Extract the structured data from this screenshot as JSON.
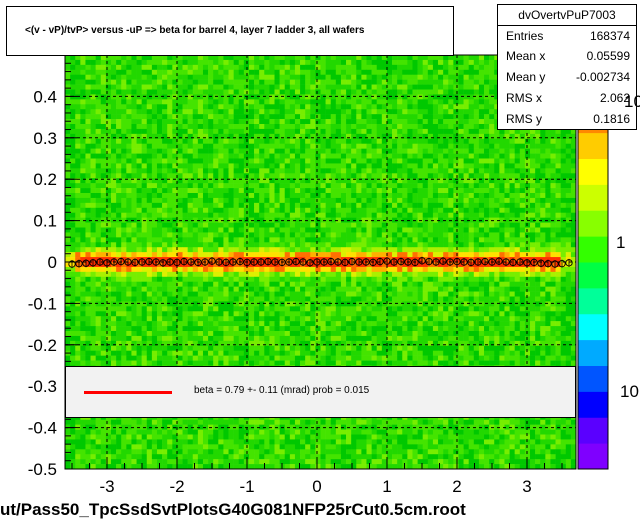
{
  "title": "<(v - vP)/tvP> versus  -uP => beta for barrel 4, layer 7 ladder 3, all wafers",
  "footer": "ut/Pass50_TpcSsdSvtPlotsG40G081NFP25rCut0.5cm.root",
  "stats": {
    "name": "dvOvertvPuP7003",
    "rows": [
      {
        "key": "Entries",
        "value": "168374"
      },
      {
        "key": "Mean x",
        "value": "0.05599"
      },
      {
        "key": "Mean y",
        "value": "-0.002734"
      },
      {
        "key": "RMS x",
        "value": "2.062"
      },
      {
        "key": "RMS y",
        "value": "0.1816"
      }
    ]
  },
  "legend": {
    "text": "beta =    0.79 +-  0.11 (mrad) prob = 0.015",
    "line_color": "#ff0000"
  },
  "colorbar": {
    "tick_labels": [
      "10",
      "1",
      "10"
    ],
    "colors": [
      "#7f00ff",
      "#5a00ff",
      "#0000ff",
      "#0055ff",
      "#00aaff",
      "#00ffff",
      "#00ff99",
      "#00ff44",
      "#33ff00",
      "#88ff00",
      "#ccff00",
      "#ffff00",
      "#ffcc00",
      "#ff8800",
      "#ff4400",
      "#ff0000"
    ]
  },
  "chart_data": {
    "type": "heatmap",
    "title": "<(v - vP)/tvP> versus  -uP => beta for barrel 4, layer 7 ladder 3, all wafers",
    "xlabel": "",
    "ylabel": "",
    "xlim": [
      -3.6,
      3.7
    ],
    "ylim": [
      -0.5,
      0.5
    ],
    "x_ticks": [
      -3,
      -2,
      -1,
      0,
      1,
      2,
      3
    ],
    "y_ticks": [
      -0.5,
      -0.4,
      -0.3,
      -0.2,
      -0.1,
      0,
      0.1,
      0.2,
      0.3,
      0.4
    ],
    "x_tick_labels": [
      "-3",
      "-2",
      "-1",
      "0",
      "1",
      "2",
      "3"
    ],
    "y_tick_labels": [
      "-0.5",
      "-0.4",
      "-0.3",
      "-0.2",
      "-0.1",
      "0",
      "0.1",
      "0.2",
      "0.3",
      "0.4"
    ],
    "grid": true,
    "profile": {
      "x": [
        -3.5,
        -3.4,
        -3.3,
        -3.2,
        -3.1,
        -3.0,
        -2.9,
        -2.8,
        -2.7,
        -2.6,
        -2.5,
        -2.4,
        -2.3,
        -2.2,
        -2.1,
        -2.0,
        -1.9,
        -1.8,
        -1.7,
        -1.6,
        -1.5,
        -1.4,
        -1.3,
        -1.2,
        -1.1,
        -1.0,
        -0.9,
        -0.8,
        -0.7,
        -0.6,
        -0.5,
        -0.4,
        -0.3,
        -0.2,
        -0.1,
        0.0,
        0.1,
        0.2,
        0.3,
        0.4,
        0.5,
        0.6,
        0.7,
        0.8,
        0.9,
        1.0,
        1.1,
        1.2,
        1.3,
        1.4,
        1.5,
        1.6,
        1.7,
        1.8,
        1.9,
        2.0,
        2.1,
        2.2,
        2.3,
        2.4,
        2.5,
        2.6,
        2.7,
        2.8,
        2.9,
        3.0,
        3.1,
        3.2,
        3.3,
        3.4,
        3.5,
        3.6
      ],
      "y": [
        -0.005,
        -0.004,
        -0.003,
        -0.002,
        0.0,
        -0.002,
        0.0,
        0.001,
        0.0,
        -0.001,
        0.0,
        0.001,
        0.0,
        -0.002,
        0.0,
        -0.001,
        0.001,
        0.0,
        -0.001,
        0.0,
        0.002,
        0.0,
        -0.001,
        0.0,
        0.001,
        -0.001,
        0.0,
        0.0,
        0.001,
        0.0,
        -0.001,
        0.0,
        0.001,
        0.0,
        -0.002,
        0.0,
        0.0,
        0.001,
        0.0,
        -0.001,
        0.001,
        0.0,
        0.0,
        -0.001,
        0.001,
        0.002,
        0.0,
        0.001,
        0.0,
        -0.001,
        0.003,
        0.001,
        0.0,
        0.002,
        0.0,
        0.001,
        0.0,
        -0.001,
        0.0,
        0.001,
        0.0,
        0.002,
        0.0,
        -0.001,
        0.0,
        -0.002,
        -0.001,
        -0.003,
        -0.004,
        -0.005,
        -0.004,
        -0.002
      ]
    }
  }
}
